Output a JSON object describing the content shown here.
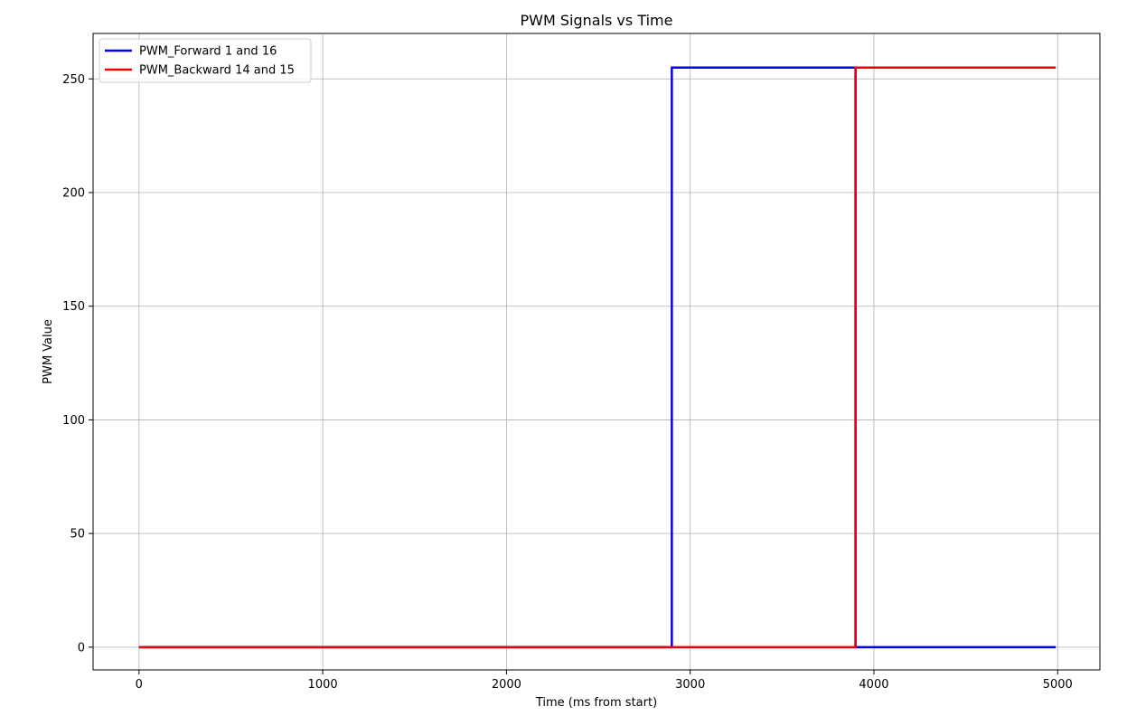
{
  "chart_data": {
    "type": "line",
    "title": "PWM Signals vs Time",
    "xlabel": "Time (ms from start)",
    "ylabel": "PWM Value",
    "xlim": [
      -250,
      5230
    ],
    "ylim": [
      -10,
      270
    ],
    "xticks": [
      0,
      1000,
      2000,
      3000,
      4000,
      5000
    ],
    "yticks": [
      0,
      50,
      100,
      150,
      200,
      250
    ],
    "grid": true,
    "legend_position": "top-left",
    "series": [
      {
        "name": "PWM_Forward 1 and 16",
        "color": "#0000ee",
        "step": true,
        "x": [
          0,
          2900,
          2900,
          3900,
          3900,
          4990
        ],
        "y": [
          0,
          0,
          255,
          255,
          0,
          0
        ]
      },
      {
        "name": "PWM_Backward 14 and 15",
        "color": "#ee0000",
        "step": true,
        "x": [
          0,
          3900,
          3900,
          4990
        ],
        "y": [
          0,
          0,
          255,
          255
        ]
      }
    ]
  }
}
